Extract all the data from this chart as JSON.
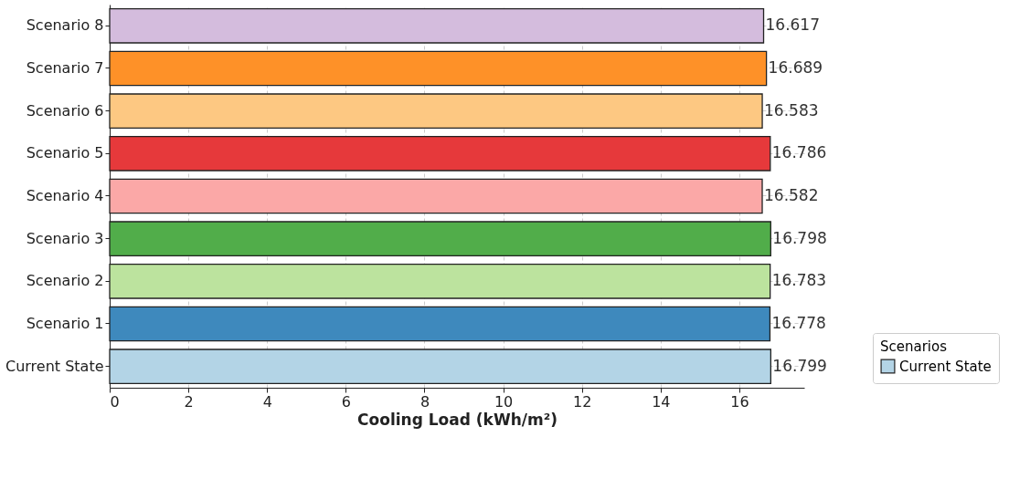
{
  "chart_data": {
    "type": "bar",
    "orientation": "horizontal",
    "xlabel": "Cooling Load (kWh/m²)",
    "legend_title": "Scenarios",
    "legend": "bottom right",
    "grid": true,
    "data_labels": true,
    "categories": [
      "Scenario 8",
      "Scenario 7",
      "Scenario 6",
      "Scenario 5",
      "Scenario 4",
      "Scenario 3",
      "Scenario 2",
      "Scenario 1",
      "Current State"
    ],
    "series": [
      {
        "name": "Current State",
        "color": "#b3d4e6",
        "values": [
          null,
          null,
          null,
          null,
          null,
          null,
          null,
          null,
          16.799
        ]
      },
      {
        "colors": [
          "#d4bcdd",
          "#fe9128",
          "#fdc882",
          "#e6393b",
          "#fba8a7",
          "#51ad4a",
          "#bce39e",
          "#3e89bd",
          null
        ],
        "values": [
          16.617,
          16.689,
          16.583,
          16.786,
          16.582,
          16.798,
          16.783,
          16.778,
          null
        ]
      }
    ],
    "xlim": [
      0,
      17.65
    ],
    "xticks": [
      0,
      2,
      4,
      6,
      8,
      10,
      12,
      14,
      16
    ]
  }
}
